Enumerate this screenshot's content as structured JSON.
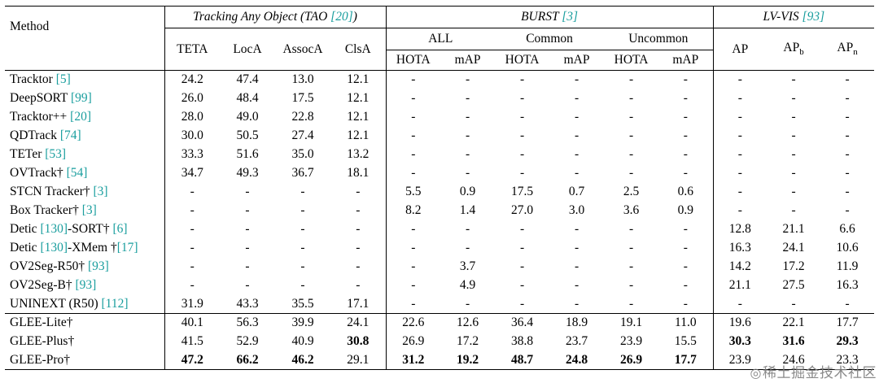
{
  "colors": {
    "cite": "#1a9e9e"
  },
  "header": {
    "method": "Method",
    "tao_title": {
      "text": "Tracking Any Object (TAO ",
      "cite": "[20]",
      "close": ")"
    },
    "burst_title": {
      "text": "BURST ",
      "cite": "[3]",
      "close": ""
    },
    "lvvis_title": {
      "text": "LV-VIS ",
      "cite": "[93]",
      "close": ""
    },
    "tao_cols": [
      "TETA",
      "LocA",
      "AssocA",
      "ClsA"
    ],
    "burst_groups": [
      "ALL",
      "Common",
      "Uncommon"
    ],
    "metric_hota": "HOTA",
    "metric_map": "mAP",
    "ap": "AP",
    "ap_b_base": "AP",
    "ap_b_sub": "b",
    "ap_n_base": "AP",
    "ap_n_sub": "n"
  },
  "rows": [
    {
      "method": [
        {
          "t": "Tracktor "
        },
        {
          "t": "[5]",
          "cite": true
        }
      ],
      "values": [
        "24.2",
        "47.4",
        "13.0",
        "12.1",
        "-",
        "-",
        "-",
        "-",
        "-",
        "-",
        "-",
        "-",
        "-"
      ],
      "bold": []
    },
    {
      "method": [
        {
          "t": "DeepSORT "
        },
        {
          "t": "[99]",
          "cite": true
        }
      ],
      "values": [
        "26.0",
        "48.4",
        "17.5",
        "12.1",
        "-",
        "-",
        "-",
        "-",
        "-",
        "-",
        "-",
        "-",
        "-"
      ],
      "bold": []
    },
    {
      "method": [
        {
          "t": "Tracktor++ "
        },
        {
          "t": "[20]",
          "cite": true
        }
      ],
      "values": [
        "28.0",
        "49.0",
        "22.8",
        "12.1",
        "-",
        "-",
        "-",
        "-",
        "-",
        "-",
        "-",
        "-",
        "-"
      ],
      "bold": []
    },
    {
      "method": [
        {
          "t": "QDTrack "
        },
        {
          "t": "[74]",
          "cite": true
        }
      ],
      "values": [
        "30.0",
        "50.5",
        "27.4",
        "12.1",
        "-",
        "-",
        "-",
        "-",
        "-",
        "-",
        "-",
        "-",
        "-"
      ],
      "bold": []
    },
    {
      "method": [
        {
          "t": "TETer "
        },
        {
          "t": "[53]",
          "cite": true
        }
      ],
      "values": [
        "33.3",
        "51.6",
        "35.0",
        "13.2",
        "-",
        "-",
        "-",
        "-",
        "-",
        "-",
        "-",
        "-",
        "-"
      ],
      "bold": []
    },
    {
      "method": [
        {
          "t": "OVTrack† "
        },
        {
          "t": "[54]",
          "cite": true
        }
      ],
      "values": [
        "34.7",
        "49.3",
        "36.7",
        "18.1",
        "-",
        "-",
        "-",
        "-",
        "-",
        "-",
        "-",
        "-",
        "-"
      ],
      "bold": []
    },
    {
      "method": [
        {
          "t": "STCN Tracker† "
        },
        {
          "t": "[3]",
          "cite": true
        }
      ],
      "values": [
        "-",
        "-",
        "-",
        "-",
        "5.5",
        "0.9",
        "17.5",
        "0.7",
        "2.5",
        "0.6",
        "-",
        "-",
        "-"
      ],
      "bold": []
    },
    {
      "method": [
        {
          "t": "Box Tracker† "
        },
        {
          "t": "[3]",
          "cite": true
        }
      ],
      "values": [
        "-",
        "-",
        "-",
        "-",
        "8.2",
        "1.4",
        "27.0",
        "3.0",
        "3.6",
        "0.9",
        "-",
        "-",
        "-"
      ],
      "bold": []
    },
    {
      "method": [
        {
          "t": "Detic "
        },
        {
          "t": "[130]",
          "cite": true
        },
        {
          "t": "-SORT† "
        },
        {
          "t": "[6]",
          "cite": true
        }
      ],
      "values": [
        "-",
        "-",
        "-",
        "-",
        "-",
        "-",
        "-",
        "-",
        "-",
        "-",
        "12.8",
        "21.1",
        "6.6"
      ],
      "bold": []
    },
    {
      "method": [
        {
          "t": "Detic "
        },
        {
          "t": "[130]",
          "cite": true
        },
        {
          "t": "-XMem †"
        },
        {
          "t": "[17]",
          "cite": true
        }
      ],
      "values": [
        "-",
        "-",
        "-",
        "-",
        "-",
        "-",
        "-",
        "-",
        "-",
        "-",
        "16.3",
        "24.1",
        "10.6"
      ],
      "bold": []
    },
    {
      "method": [
        {
          "t": "OV2Seg-R50† "
        },
        {
          "t": "[93]",
          "cite": true
        }
      ],
      "values": [
        "-",
        "-",
        "-",
        "-",
        "-",
        "3.7",
        "-",
        "-",
        "-",
        "-",
        "14.2",
        "17.2",
        "11.9"
      ],
      "bold": []
    },
    {
      "method": [
        {
          "t": "OV2Seg-B† "
        },
        {
          "t": "[93]",
          "cite": true
        }
      ],
      "values": [
        "-",
        "-",
        "-",
        "-",
        "-",
        "4.9",
        "-",
        "-",
        "-",
        "-",
        "21.1",
        "27.5",
        "16.3"
      ],
      "bold": []
    },
    {
      "method": [
        {
          "t": "UNINEXT (R50) "
        },
        {
          "t": "[112]",
          "cite": true
        }
      ],
      "values": [
        "31.9",
        "43.3",
        "35.5",
        "17.1",
        "-",
        "-",
        "-",
        "-",
        "-",
        "-",
        "-",
        "-",
        "-"
      ],
      "bold": []
    },
    {
      "method": [
        {
          "t": "GLEE-Lite†"
        }
      ],
      "group_start": true,
      "values": [
        "40.1",
        "56.3",
        "39.9",
        "24.1",
        "22.6",
        "12.6",
        "36.4",
        "18.9",
        "19.1",
        "11.0",
        "19.6",
        "22.1",
        "17.7"
      ],
      "bold": []
    },
    {
      "method": [
        {
          "t": "GLEE-Plus†"
        }
      ],
      "values": [
        "41.5",
        "52.9",
        "40.9",
        "30.8",
        "26.9",
        "17.2",
        "38.8",
        "23.7",
        "23.9",
        "15.5",
        "30.3",
        "31.6",
        "29.3"
      ],
      "bold": [
        3,
        10,
        11,
        12
      ]
    },
    {
      "method": [
        {
          "t": "GLEE-Pro†"
        }
      ],
      "values": [
        "47.2",
        "66.2",
        "46.2",
        "29.1",
        "31.2",
        "19.2",
        "48.7",
        "24.8",
        "26.9",
        "17.7",
        "23.9",
        "24.6",
        "23.3"
      ],
      "bold": [
        0,
        1,
        2,
        4,
        5,
        6,
        7,
        8,
        9
      ]
    }
  ],
  "watermark": {
    "icon": "◎",
    "text": "稀土掘金技术社区"
  }
}
